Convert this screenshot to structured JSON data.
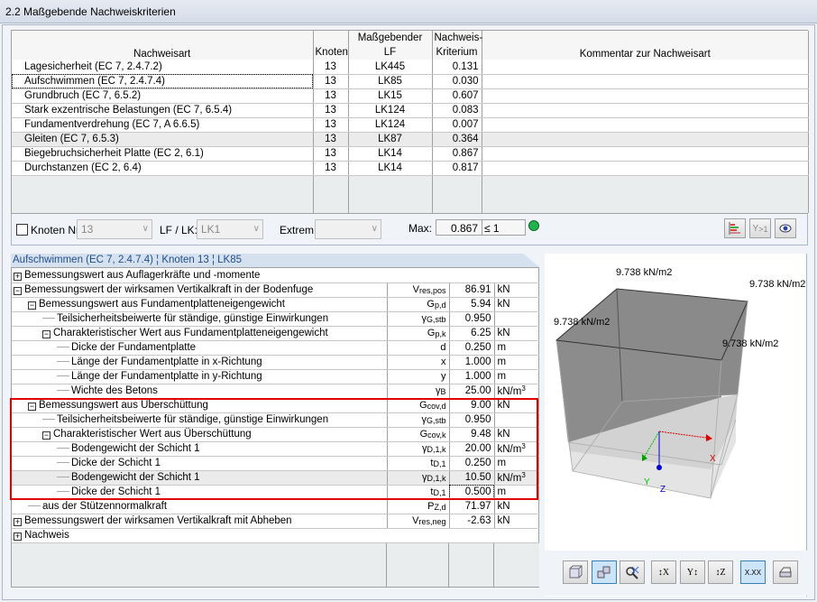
{
  "title": "2.2 Maßgebende Nachweiskriterien",
  "top_table": {
    "headers": {
      "nachweisart": "Nachweisart",
      "knoten": "Knoten",
      "massgebender": "Maßgebender",
      "lf": "LF",
      "nachweis": "Nachweis-",
      "kriterium": "Kriterium",
      "kommentar": "Kommentar zur Nachweisart"
    },
    "rows": [
      {
        "art": "Lagesicherheit (EC 7, 2.4.7.2)",
        "knoten": "13",
        "lf": "LK445",
        "krit": "0.131"
      },
      {
        "art": "Aufschwimmen (EC 7, 2.4.7.4)",
        "knoten": "13",
        "lf": "LK85",
        "krit": "0.030"
      },
      {
        "art": "Grundbruch (EC 7, 6.5.2)",
        "knoten": "13",
        "lf": "LK15",
        "krit": "0.607"
      },
      {
        "art": "Stark exzentrische Belastungen (EC 7, 6.5.4)",
        "knoten": "13",
        "lf": "LK124",
        "krit": "0.083"
      },
      {
        "art": "Fundamentverdrehung (EC 7, A 6.6.5)",
        "knoten": "13",
        "lf": "LK124",
        "krit": "0.007"
      },
      {
        "art": "Gleiten (EC 7, 6.5.3)",
        "knoten": "13",
        "lf": "LK87",
        "krit": "0.364"
      },
      {
        "art": "Biegebruchsicherheit Platte (EC 2, 6.1)",
        "knoten": "13",
        "lf": "LK14",
        "krit": "0.867"
      },
      {
        "art": "Durchstanzen (EC 2, 6.4)",
        "knoten": "13",
        "lf": "LK14",
        "krit": "0.817"
      }
    ]
  },
  "filter": {
    "knoten_label": "Knoten Nr.:",
    "knoten_value": "13",
    "lf_label": "LF / LK:",
    "lf_value": "LK1",
    "extrem_label": "Extrem:",
    "extrem_value": "",
    "max_label": "Max:",
    "max_value": "0.867",
    "max_cond": "≤ 1",
    "status_color": "#22b14c"
  },
  "detail_header": "Aufschwimmen (EC 7, 2.4.7.4) ¦ Knoten 13 ¦ LK85",
  "detail_rows": [
    {
      "t": "plus",
      "lvl": 0,
      "text": "Bemessungswert aus Auflagerkräfte und -momente",
      "sym": "",
      "sub": "",
      "val": "",
      "unit": ""
    },
    {
      "t": "minus",
      "lvl": 0,
      "text": "Bemessungswert der wirksamen Vertikalkraft in der Bodenfuge",
      "sym": "V",
      "sub": "res,pos",
      "val": "86.91",
      "unit": "kN"
    },
    {
      "t": "minus",
      "lvl": 1,
      "text": "Bemessungswert aus Fundamentplatteneigengewicht",
      "sym": "G",
      "sub": "p,d",
      "val": "5.94",
      "unit": "kN"
    },
    {
      "t": "",
      "lvl": 2,
      "text": "Teilsicherheitsbeiwerte für ständige, günstige Einwirkungen",
      "sym": "γ",
      "sub": "G,stb",
      "val": "0.950",
      "unit": ""
    },
    {
      "t": "minus",
      "lvl": 2,
      "text": "Charakteristischer Wert aus Fundamentplatteneigengewicht",
      "sym": "G",
      "sub": "p,k",
      "val": "6.25",
      "unit": "kN"
    },
    {
      "t": "",
      "lvl": 3,
      "text": "Dicke der Fundamentplatte",
      "sym": "d",
      "sub": "",
      "val": "0.250",
      "unit": "m"
    },
    {
      "t": "",
      "lvl": 3,
      "text": "Länge der Fundamentplatte in x-Richtung",
      "sym": "x",
      "sub": "",
      "val": "1.000",
      "unit": "m"
    },
    {
      "t": "",
      "lvl": 3,
      "text": "Länge der Fundamentplatte in y-Richtung",
      "sym": "y",
      "sub": "",
      "val": "1.000",
      "unit": "m"
    },
    {
      "t": "",
      "lvl": 3,
      "text": "Wichte des Betons",
      "sym": "γ",
      "sub": "B",
      "val": "25.00",
      "unit": "kN/m",
      "sup": "3"
    },
    {
      "t": "minus",
      "lvl": 1,
      "text": "Bemessungswert aus Überschüttung",
      "sym": "G",
      "sub": "cov,d",
      "val": "9.00",
      "unit": "kN"
    },
    {
      "t": "",
      "lvl": 2,
      "text": "Teilsicherheitsbeiwerte für ständige, günstige Einwirkungen",
      "sym": "γ",
      "sub": "G,stb",
      "val": "0.950",
      "unit": ""
    },
    {
      "t": "minus",
      "lvl": 2,
      "text": "Charakteristischer Wert aus Überschüttung",
      "sym": "G",
      "sub": "cov,k",
      "val": "9.48",
      "unit": "kN"
    },
    {
      "t": "",
      "lvl": 3,
      "text": "Bodengewicht der Schicht 1",
      "sym": "γ",
      "sub": "D,1,k",
      "val": "20.00",
      "unit": "kN/m",
      "sup": "3"
    },
    {
      "t": "",
      "lvl": 3,
      "text": "Dicke der Schicht 1",
      "sym": "t",
      "sub": "D,1",
      "val": "0.250",
      "unit": "m"
    },
    {
      "t": "",
      "lvl": 3,
      "text": "Bodengewicht der Schicht 1",
      "sym": "γ",
      "sub": "D,1,k",
      "val": "10.50",
      "unit": "kN/m",
      "sup": "3",
      "sel": true
    },
    {
      "t": "",
      "lvl": 3,
      "text": "Dicke der Schicht 1",
      "sym": "t",
      "sub": "D,1",
      "val": "0.500",
      "unit": "m",
      "focus": true
    },
    {
      "t": "",
      "lvl": 1,
      "text": "aus der Stützennormalkraft",
      "sym": "P",
      "sub": "Z,d",
      "val": "71.97",
      "unit": "kN"
    },
    {
      "t": "plus",
      "lvl": 0,
      "text": "Bemessungswert der wirksamen Vertikalkraft mit Abheben",
      "sym": "V",
      "sub": "res,neg",
      "val": "-2.63",
      "unit": "kN"
    },
    {
      "t": "plus",
      "lvl": 0,
      "text": "Nachweis",
      "sym": "",
      "sub": "",
      "val": "",
      "unit": ""
    }
  ],
  "view": {
    "labels": [
      "9.738 kN/m2",
      "9.738 kN/m2",
      "9.738 kN/m2",
      "9.738 kN/m2"
    ],
    "axes": {
      "x": "X",
      "y": "Y",
      "z": "Z"
    },
    "axis_colors": {
      "x": "#e00000",
      "y": "#00c000",
      "z": "#0000cc"
    },
    "toolbar": [
      "cube-view-icon",
      "isometric-icon",
      "zoom-icon",
      "view-x-icon",
      "view-y-icon",
      "view-z-icon",
      "values-icon",
      "print-icon"
    ],
    "values_label": "X.XX"
  }
}
